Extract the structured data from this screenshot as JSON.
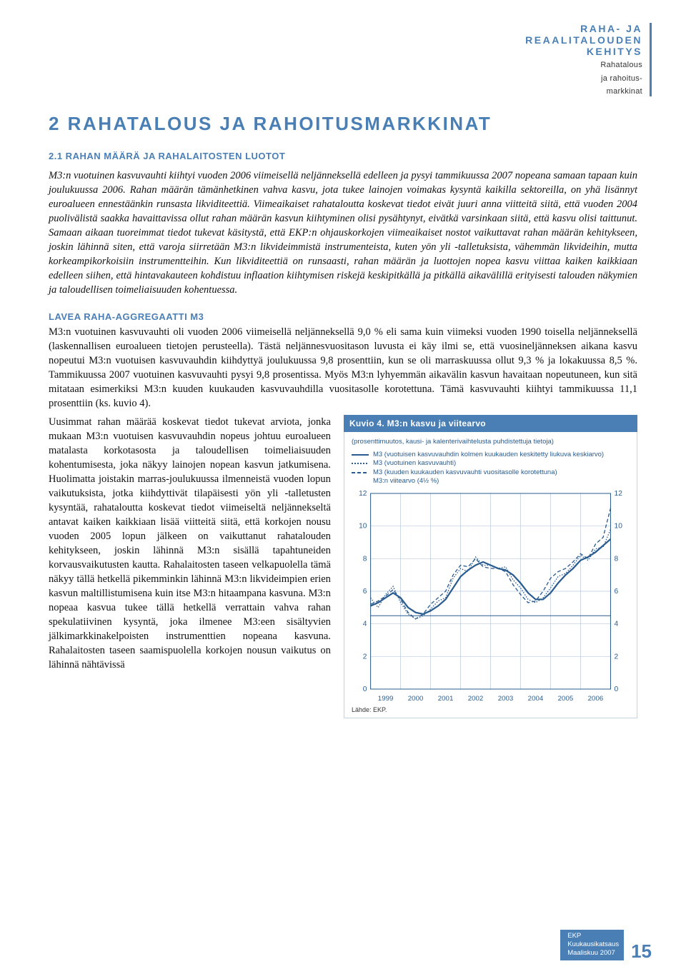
{
  "corner": {
    "l1a": "RAHA- JA",
    "l1b": "REAALITALOUDEN",
    "l1c": "KEHITYS",
    "l2a": "Rahatalous",
    "l2b": "ja rahoitus-",
    "l2c": "markkinat"
  },
  "title": "2 RAHATALOUS JA RAHOITUSMARKKINAT",
  "subtitle": "2.1 RAHAN MÄÄRÄ JA RAHALAITOSTEN LUOTOT",
  "intro": "M3:n vuotuinen kasvuvauhti kiihtyi vuoden 2006 viimeisellä neljänneksellä edelleen ja pysyi tammikuussa 2007 nopeana samaan tapaan kuin joulukuussa 2006. Rahan määrän tämänhetkinen vahva kasvu, jota tukee lainojen voimakas kysyntä kaikilla sektoreilla, on yhä lisännyt euroalueen ennestäänkin runsasta likviditeettiä. Viimeaikaiset rahataloutta koskevat tiedot eivät juuri anna viitteitä siitä, että vuoden 2004 puolivälistä saakka havaittavissa ollut rahan määrän kasvun kiihtyminen olisi pysähtynyt, eivätkä varsinkaan siitä, että kasvu olisi taittunut. Samaan aikaan tuoreimmat tiedot tukevat käsitystä, että EKP:n ohjauskorkojen viimeaikaiset nostot vaikuttavat rahan määrän kehitykseen, joskin lähinnä siten, että varoja siirretään M3:n likvideimmistä instrumenteista, kuten yön yli -talletuksista, vähemmän likvideihin, mutta korkeampikorkoisiin instrumentteihin. Kun likviditeettiä on runsaasti, rahan määrän ja luottojen nopea kasvu viittaa kaiken kaikkiaan edelleen siihen, että hintavakаuteen kohdistuu inflaation kiihtymisen riskejä keskipitkällä ja pitkällä aikavälillä erityisesti talouden näkymien ja taloudellisen toimeliaisuuden kohentuessa.",
  "section_head": "LAVEA RAHA-AGGREGAATTI M3",
  "body_full": "M3:n vuotuinen kasvuvauhti oli vuoden 2006 viimeisellä neljänneksellä 9,0 % eli sama kuin viimeksi vuoden 1990 toisella neljänneksellä (laskennallisen euroalueen tietojen perusteella). Tästä neljännesvuositason luvusta ei käy ilmi se, että vuosineljänneksen aikana kasvu nopeutui M3:n vuotuisen kasvuvauhdin kiihdyttyä joulukuussa 9,8 prosenttiin, kun se oli marraskuussa ollut 9,3 % ja lokakuussa 8,5 %. Tammikuussa 2007 vuotuinen kasvuvauhti pysyi 9,8 prosentissa. Myös M3:n lyhyemmän aikavälin kasvun havaitaan nopeutuneen, kun sitä mitataan esimerkiksi M3:n kuuden kuukauden kasvuvauhdilla vuositasolle korotettuna. Tämä kasvuvauhti kiihtyi tammikuussa 11,1 prosenttiin (ks. kuvio 4).",
  "left_text": "Uusimmat rahan määrää koskevat tiedot tukevat arviota, jonka mukaan M3:n vuotuisen kasvuvauhdin nopeus johtuu euroalueen matalasta korkotasosta ja taloudellisen toimeliaisuuden kohentumisesta, joka näkyy lainojen nopean kasvun jatkumisena. Huolimatta joistakin marras-joulukuussa ilmenneistä vuoden lopun vaikutuksista, jotka kiihdyttivät tilapäisesti yön yli -talletusten kysyntää, rahataloutta koskevat tiedot viimeiseltä neljännekseltä antavat kaiken kaikkiaan lisää viitteitä siitä, että korkojen nousu vuoden 2005 lopun jälkeen on vaikuttanut rahatalouden kehitykseen, joskin lähinnä M3:n sisällä tapahtuneiden korvausvaikutusten kautta. Rahalaitosten taseen velkapuolella tämä näkyy tällä hetkellä pikemminkin lähinnä M3:n likvideimpien erien kasvun maltillistumisena kuin itse M3:n hitaampana kasvuna. M3:n nopeaa kasvua tukee tällä hetkellä verrattain vahva rahan spekulatiivinen kysyntä, joka ilmenee M3:een sisältyvien jälkimarkkinakelpoisten instrumenttien nopeana kasvuna. Rahalaitosten taseen saamispuolella korkojen nousun vaikutus on lähinnä nähtävissä",
  "chart": {
    "title_bar": "Kuvio 4. M3:n kasvu ja viitearvo",
    "note": "(prosenttimuutos, kausi- ja kalenterivaihtelusta puhdistettuja tietoja)",
    "legend": [
      "M3 (vuotuisen kasvuvauhdin kolmen kuukauden keskitetty liukuva keskiarvo)",
      "M3 (vuotuinen kasvuvauhti)",
      "M3 (kuuden kuukauden kasvuvauhti vuositasolle korotettuna)",
      "M3:n viitearvo (4½ %)"
    ],
    "ylim": [
      0,
      12
    ],
    "ytick_step": 2,
    "xticks": [
      "1999",
      "2000",
      "2001",
      "2002",
      "2003",
      "2004",
      "2005",
      "2006"
    ],
    "ref_value": 4.5,
    "colors": {
      "axis": "#2a5c8f",
      "grid": "#b9c9dd",
      "line": "#2a5c8f",
      "bg": "#ffffff"
    },
    "source": "Lähde: EKP.",
    "series_solid": [
      5.1,
      5.3,
      5.6,
      5.9,
      5.6,
      5.0,
      4.7,
      4.6,
      4.8,
      5.1,
      5.5,
      6.2,
      6.9,
      7.3,
      7.6,
      7.8,
      7.6,
      7.4,
      7.3,
      7.0,
      6.5,
      5.9,
      5.5,
      5.5,
      5.9,
      6.5,
      7.0,
      7.4,
      7.9,
      8.1,
      8.4,
      8.8,
      9.2
    ],
    "series_dotted": [
      5.6,
      5.0,
      5.8,
      6.3,
      5.3,
      4.6,
      4.3,
      4.5,
      4.9,
      5.4,
      5.6,
      6.8,
      7.4,
      7.2,
      8.1,
      7.6,
      7.6,
      7.4,
      7.5,
      6.7,
      6.2,
      5.5,
      5.3,
      5.6,
      6.2,
      6.9,
      7.1,
      7.6,
      8.2,
      7.9,
      8.6,
      8.7,
      9.8
    ],
    "series_dashed": [
      5.2,
      5.4,
      5.7,
      6.1,
      5.5,
      4.7,
      4.3,
      4.6,
      5.2,
      5.6,
      6.0,
      7.0,
      7.6,
      7.5,
      8.0,
      7.5,
      7.4,
      7.4,
      7.2,
      6.4,
      5.8,
      5.3,
      5.4,
      6.0,
      6.8,
      7.2,
      7.4,
      7.8,
      8.3,
      8.0,
      8.9,
      9.3,
      11.1
    ]
  },
  "footer": {
    "org": "EKP",
    "pub": "Kuukausikatsaus",
    "date": "Maaliskuu 2007",
    "page": "15"
  }
}
